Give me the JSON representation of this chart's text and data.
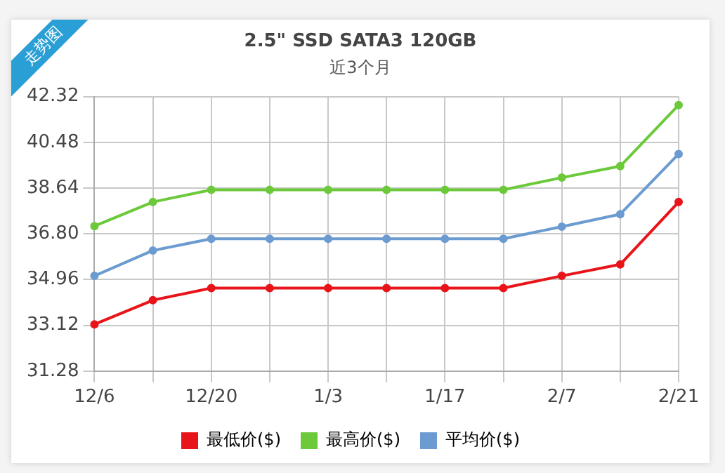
{
  "chart_data": {
    "type": "line",
    "title": "2.5\" SSD SATA3 120GB",
    "subtitle": "近3个月",
    "annotations": [
      "走势图"
    ],
    "categories": [
      "12/6",
      null,
      "12/20",
      null,
      "1/3",
      null,
      "1/17",
      null,
      "2/7",
      null,
      "2/21"
    ],
    "series": [
      {
        "name": "最低价($)",
        "color": "#e8141a",
        "values": [
          33.16,
          34.13,
          34.62,
          34.62,
          34.62,
          34.62,
          34.62,
          34.62,
          35.11,
          35.57,
          38.08
        ]
      },
      {
        "name": "最高价($)",
        "color": "#6cc93a",
        "values": [
          37.11,
          38.08,
          38.57,
          38.57,
          38.57,
          38.57,
          38.57,
          38.57,
          39.06,
          39.52,
          41.98
        ]
      },
      {
        "name": "平均价($)",
        "color": "#6b9bd0",
        "values": [
          35.11,
          36.13,
          36.6,
          36.6,
          36.6,
          36.6,
          36.6,
          36.6,
          37.09,
          37.59,
          40.01
        ]
      }
    ],
    "ylim": [
      31.28,
      42.32
    ],
    "yticks": [
      31.28,
      33.12,
      34.96,
      {
        "value": 36.8,
        "label": "36.80"
      },
      38.64,
      40.48,
      42.32
    ],
    "grid": true,
    "legend": "bottom",
    "marker": "circle",
    "line_style": "solid"
  }
}
